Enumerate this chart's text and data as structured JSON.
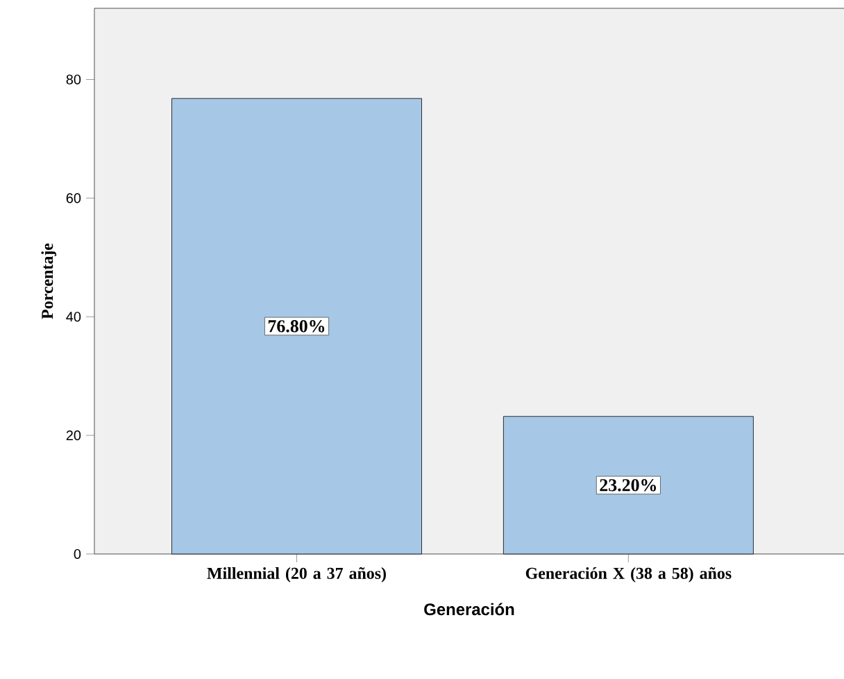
{
  "chart_data": {
    "type": "bar",
    "xlabel": "Generación",
    "ylabel": "Porcentaje",
    "categories": [
      "Millennial (20 a 37 años)",
      "Generación X (38 a 58) años"
    ],
    "values": [
      76.8,
      23.2
    ],
    "value_labels": [
      "76.80%",
      "23.20%"
    ],
    "color": "#a6c8e6",
    "ylim": [
      0,
      92
    ],
    "yticks": [
      0,
      20,
      40,
      60,
      80
    ],
    "grid": false
  }
}
